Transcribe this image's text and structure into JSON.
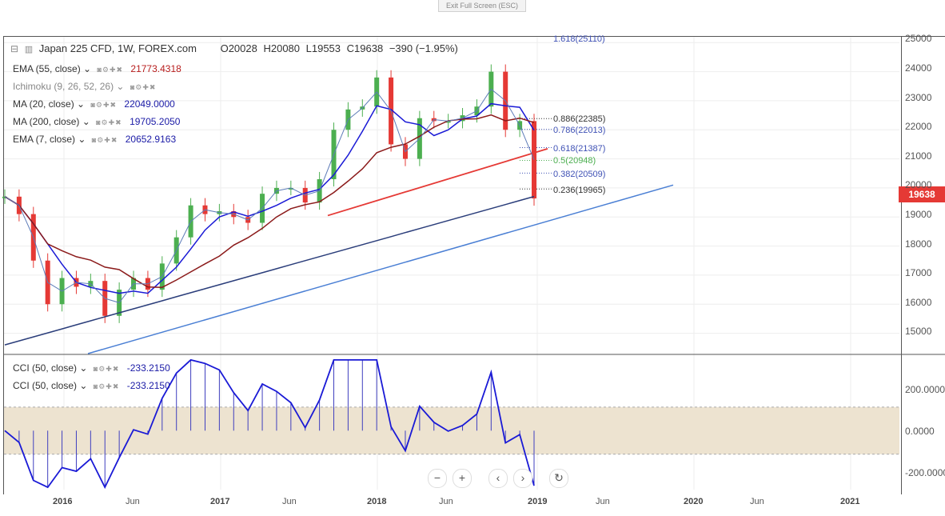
{
  "exit_fullscreen": "Exit Full Screen (ESC)",
  "header": {
    "symbol": "Japan 225 CFD, 1W, FOREX.com",
    "open": "O20028",
    "high": "H20080",
    "low": "L19553",
    "close": "C19638",
    "change": "−390 (−1.95%)"
  },
  "indicators": [
    {
      "label": "EMA (55, close)",
      "value": "21773.4318",
      "color": "#b71c1c"
    },
    {
      "label": "Ichimoku (9, 26, 52, 26)",
      "value": "",
      "color": "#333333"
    },
    {
      "label": "MA (20, close)",
      "value": "22049.0000",
      "color": "#1a1aa6"
    },
    {
      "label": "MA (200, close)",
      "value": "19705.2050",
      "color": "#1a1aa6"
    },
    {
      "label": "EMA (7, close)",
      "value": "20652.9163",
      "color": "#1a1aa6"
    }
  ],
  "cci_legend": [
    {
      "label": "CCI (50, close)",
      "value": "-233.2150"
    },
    {
      "label": "CCI (50, close)",
      "value": "-233.2150"
    }
  ],
  "last_price": "19638",
  "price_axis": [
    "25000",
    "24000",
    "23000",
    "22000",
    "21000",
    "20000",
    "19000",
    "18000",
    "17000",
    "16000",
    "15000"
  ],
  "cci_axis": [
    "200.0000",
    "0.0000",
    "-200.0000"
  ],
  "time_axis": [
    {
      "label": "2016",
      "bold": true
    },
    {
      "label": "Jun",
      "bold": false
    },
    {
      "label": "2017",
      "bold": true
    },
    {
      "label": "Jun",
      "bold": false
    },
    {
      "label": "2018",
      "bold": true
    },
    {
      "label": "Jun",
      "bold": false
    },
    {
      "label": "2019",
      "bold": true
    },
    {
      "label": "Jun",
      "bold": false
    },
    {
      "label": "2020",
      "bold": true
    },
    {
      "label": "Jun",
      "bold": false
    },
    {
      "label": "2021",
      "bold": true
    }
  ],
  "fib_levels": [
    {
      "label": "1.618(25110)",
      "color": "#3f51b5"
    },
    {
      "label": "0.886(22385)",
      "color": "#333333"
    },
    {
      "label": "0.786(22013)",
      "color": "#3f51b5"
    },
    {
      "label": "0.618(21387)",
      "color": "#3f51b5"
    },
    {
      "label": "0.5(20948)",
      "color": "#4caf50"
    },
    {
      "label": "0.382(20509)",
      "color": "#3f51b5"
    },
    {
      "label": "0.236(19965)",
      "color": "#333333"
    }
  ],
  "nav_buttons": [
    "−",
    "+",
    "‹",
    "›",
    "↻"
  ],
  "chart_data": {
    "type": "line",
    "title": "Japan 225 CFD, 1W, FOREX.com",
    "price_range": [
      14300,
      25200
    ],
    "cci_range": [
      -250,
      320
    ],
    "series": [
      {
        "name": "Close",
        "x": [
          "2015-11",
          "2015-12",
          "2016-01",
          "2016-02",
          "2016-03",
          "2016-04",
          "2016-05",
          "2016-06",
          "2016-07",
          "2016-08",
          "2016-09",
          "2016-10",
          "2016-11",
          "2016-12",
          "2017-01",
          "2017-02",
          "2017-03",
          "2017-04",
          "2017-05",
          "2017-06",
          "2017-07",
          "2017-08",
          "2017-09",
          "2017-10",
          "2017-11",
          "2017-12",
          "2018-01",
          "2018-02",
          "2018-03",
          "2018-04",
          "2018-05",
          "2018-06",
          "2018-07",
          "2018-08",
          "2018-09",
          "2018-10",
          "2018-11",
          "2018-12"
        ],
        "values": [
          19700,
          19100,
          17500,
          16000,
          16900,
          16600,
          16800,
          15600,
          16500,
          16900,
          16500,
          17400,
          18300,
          19400,
          19100,
          19200,
          19000,
          18800,
          19800,
          20000,
          20000,
          19500,
          20300,
          22000,
          22700,
          22800,
          23800,
          21500,
          21000,
          22400,
          22300,
          22300,
          22500,
          22800,
          24000,
          22000,
          22300,
          19638
        ]
      },
      {
        "name": "EMA (55, close)",
        "last": 21773.4318
      },
      {
        "name": "MA (20, close)",
        "last": 22049.0
      },
      {
        "name": "MA (200, close)",
        "last": 19705.205
      },
      {
        "name": "EMA (7, close)",
        "last": 20652.9163
      },
      {
        "name": "CCI (50, close)",
        "last": -233.215
      }
    ]
  }
}
